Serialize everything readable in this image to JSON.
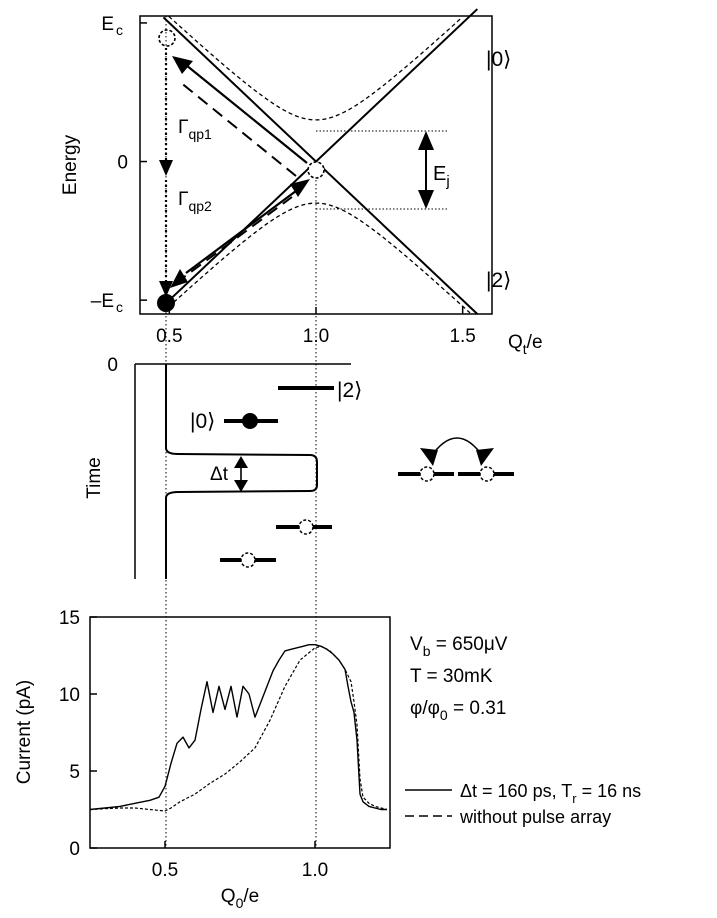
{
  "chart_data": [
    {
      "type": "line",
      "panel": "a",
      "xlabel": "Q",
      "xlabel_sub": "t",
      "xlabel_suffix": "/e",
      "ylabel": "Energy",
      "xlim": [
        0.4,
        1.6
      ],
      "ylim": [
        -1.1,
        1.05
      ],
      "xticks": [
        0.5,
        1.0,
        1.5
      ],
      "xtick_labels": [
        "0.5",
        "1.0",
        "1.5"
      ],
      "yticks": [
        -1,
        0,
        1
      ],
      "ytick_labels": [
        "–E",
        "0",
        "E"
      ],
      "ytick_sub": [
        "c",
        "",
        "c"
      ],
      "parabolas": [
        {
          "name": "|0⟩",
          "slope": 2,
          "intercept": -2,
          "x_range": [
            0.48,
            1.55
          ]
        },
        {
          "name": "|2⟩",
          "slope": -2,
          "intercept": 2,
          "x_range": [
            0.48,
            1.55
          ]
        }
      ],
      "anticrossing": {
        "center": 1.0,
        "gap_half": 0.3
      },
      "state_labels": [
        {
          "text": "|0⟩",
          "x": 1.52,
          "y": 0.85
        },
        {
          "text": "|2⟩",
          "x": 1.52,
          "y": -0.8
        }
      ],
      "annotations": [
        {
          "text": "Γ",
          "sub": "qp1",
          "x": 0.55,
          "y": 0.3
        },
        {
          "text": "Γ",
          "sub": "qp2",
          "x": 0.55,
          "y": -0.25
        },
        {
          "text": "E",
          "sub": "j",
          "x": 1.42,
          "y": 0
        }
      ],
      "ej_gap": [
        -0.3,
        0.3
      ]
    },
    {
      "type": "diagram",
      "panel": "b",
      "ylabel": "Time",
      "ytick_labels": [
        "0"
      ],
      "pulse": {
        "base_x": 0.5,
        "peak_x": 1.0,
        "t_start": 0.4,
        "t_end": 0.57
      },
      "labels": [
        {
          "text": "|0⟩"
        },
        {
          "text": "|2⟩"
        },
        {
          "text": "Δt"
        }
      ]
    },
    {
      "type": "line",
      "panel": "c",
      "xlabel": "Q",
      "xlabel_sub": "0",
      "xlabel_suffix": "/e",
      "ylabel": "Current (pA)",
      "xlim": [
        0.25,
        1.25
      ],
      "ylim": [
        0,
        15
      ],
      "xticks": [
        0.5,
        1.0
      ],
      "xtick_labels": [
        "0.5",
        "1.0"
      ],
      "yticks": [
        0,
        5,
        10,
        15
      ],
      "ytick_labels": [
        "0",
        "5",
        "10",
        "15"
      ],
      "params": [
        "V",
        "T = 30mK",
        "φ/φ"
      ],
      "param_full": [
        {
          "main": "V",
          "sub": "b",
          "rest": " = 650μV"
        },
        {
          "main": "T = 30mK",
          "sub": "",
          "rest": ""
        },
        {
          "main": "φ/φ",
          "sub": "0",
          "rest": " = 0.31"
        }
      ],
      "series": [
        {
          "name": "Δt = 160 ps, T",
          "name_sub": "r",
          "name_rest": " = 16 ns",
          "style": "solid",
          "x": [
            0.25,
            0.3,
            0.35,
            0.4,
            0.45,
            0.48,
            0.5,
            0.52,
            0.54,
            0.56,
            0.58,
            0.6,
            0.62,
            0.64,
            0.66,
            0.68,
            0.7,
            0.72,
            0.74,
            0.76,
            0.78,
            0.8,
            0.82,
            0.84,
            0.86,
            0.88,
            0.9,
            0.92,
            0.94,
            0.96,
            0.98,
            1.0,
            1.02,
            1.04,
            1.06,
            1.08,
            1.1,
            1.11,
            1.12,
            1.13,
            1.14,
            1.15,
            1.16,
            1.18,
            1.2,
            1.22,
            1.24
          ],
          "y": [
            2.5,
            2.6,
            2.7,
            2.9,
            3.1,
            3.3,
            4.0,
            5.5,
            6.8,
            7.2,
            6.5,
            7.0,
            9.0,
            10.8,
            8.8,
            10.5,
            9.0,
            10.5,
            8.5,
            10.5,
            10.0,
            8.5,
            9.5,
            10.5,
            11.5,
            12.2,
            12.8,
            12.9,
            13.0,
            13.1,
            13.2,
            13.2,
            13.1,
            12.9,
            12.6,
            12.2,
            11.6,
            10.5,
            9.5,
            8.8,
            7.0,
            3.5,
            3.0,
            2.7,
            2.6,
            2.5,
            2.5
          ]
        },
        {
          "name": "without pulse array",
          "style": "dashed",
          "x": [
            0.25,
            0.3,
            0.35,
            0.4,
            0.45,
            0.5,
            0.52,
            0.55,
            0.6,
            0.65,
            0.7,
            0.75,
            0.8,
            0.85,
            0.9,
            0.95,
            1.0,
            1.02,
            1.05,
            1.08,
            1.1,
            1.12,
            1.13,
            1.14,
            1.15,
            1.16,
            1.18,
            1.2,
            1.22,
            1.24
          ],
          "y": [
            2.5,
            2.55,
            2.6,
            2.6,
            2.5,
            2.4,
            2.6,
            3.0,
            3.5,
            4.2,
            4.8,
            5.6,
            6.5,
            8.3,
            10.5,
            12.2,
            13.0,
            13.1,
            12.8,
            12.2,
            11.6,
            10.8,
            9.5,
            8.0,
            4.5,
            3.3,
            2.9,
            2.7,
            2.6,
            2.5
          ]
        }
      ]
    }
  ]
}
